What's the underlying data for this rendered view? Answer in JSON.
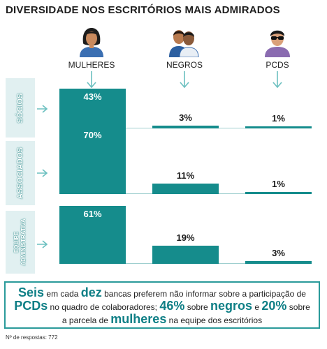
{
  "title": "DIVERSIDADE NOS ESCRITÓRIOS MAIS ADMIRADOS",
  "columns": [
    "MULHERES",
    "NEGROS",
    "PCDS"
  ],
  "rows": [
    {
      "label": "SÓCIOS"
    },
    {
      "label": "ASSOCIADOS"
    },
    {
      "label_line1": "EQUIPE",
      "label_line2": "ADMINISTRATIVA"
    }
  ],
  "icons": [
    "woman-avatar-icon",
    "two-men-avatar-icon",
    "man-sunglasses-avatar-icon"
  ],
  "colors": {
    "bar": "#158c8c",
    "accent": "#0f7f86",
    "label_bg": "#e1f0f1"
  },
  "chart_data": {
    "type": "bar",
    "title": "DIVERSIDADE NOS ESCRITÓRIOS MAIS ADMIRADOS",
    "categories": [
      "MULHERES",
      "NEGROS",
      "PCDS"
    ],
    "series": [
      {
        "name": "SÓCIOS",
        "values": [
          43,
          3,
          1
        ],
        "labels": [
          "43%",
          "3%",
          "1%"
        ]
      },
      {
        "name": "ASSOCIADOS",
        "values": [
          70,
          11,
          1
        ],
        "labels": [
          "70%",
          "11%",
          "1%"
        ]
      },
      {
        "name": "EQUIPE ADMINISTRATIVA",
        "values": [
          61,
          19,
          3
        ],
        "labels": [
          "61%",
          "19%",
          "3%"
        ]
      }
    ],
    "ylim": [
      0,
      100
    ]
  },
  "note": {
    "t1": "Seis",
    "t2": " em cada ",
    "t3": "dez",
    "t4": " bancas preferem não informar sobre a participação de ",
    "t5": "PCDs",
    "t6": " no quadro de colaboradores; ",
    "t7": "46%",
    "t8": " sobre ",
    "t9": "negros",
    "t10": " e ",
    "t11": "20%",
    "t12": " sobre a parcela de ",
    "t13": "mulheres",
    "t14": " na equipe dos escritórios"
  },
  "footer": "Nº de respostas: 772"
}
